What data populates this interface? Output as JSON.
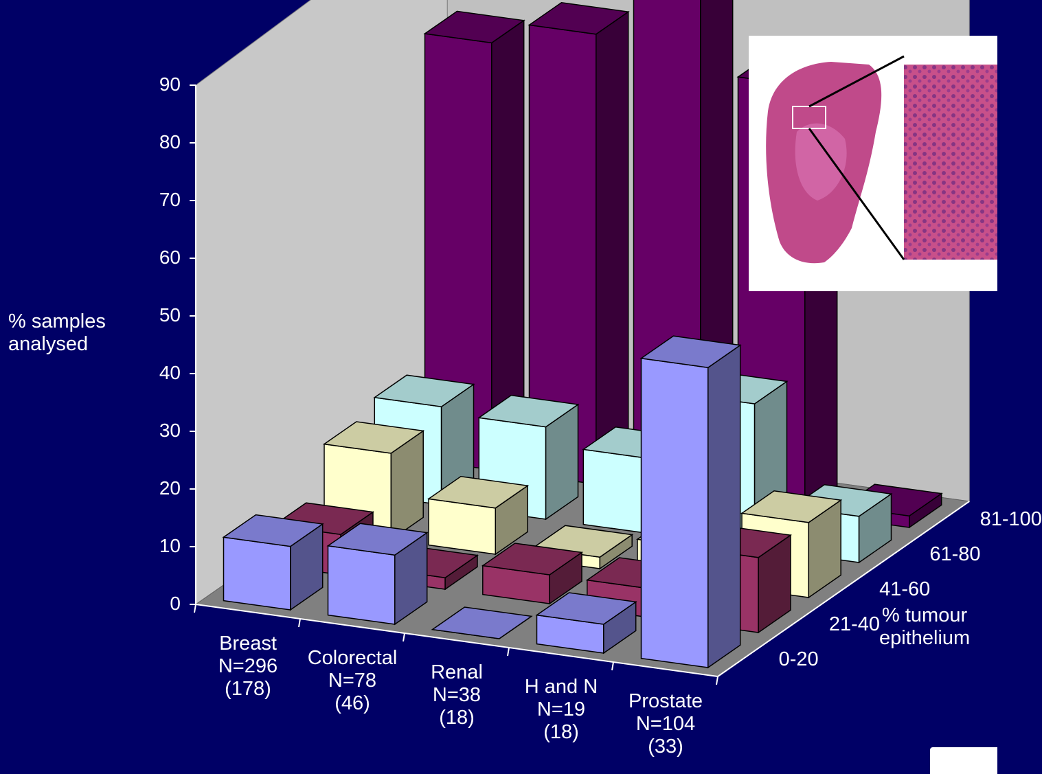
{
  "chart_data": {
    "type": "bar",
    "subtype": "3d-column",
    "ylabel": "% samples\nanalysed",
    "zlabel": "% tumour\nepithelium",
    "ylim": [
      0,
      90
    ],
    "yticks": [
      "0",
      "10",
      "20",
      "30",
      "40",
      "50",
      "60",
      "70",
      "80",
      "90"
    ],
    "categories": [
      "Breast\nN=296\n(178)",
      "Colorectal\nN=78\n(46)",
      "Renal\nN=38\n(18)",
      "H and N\nN=19\n(18)",
      "Prostate\nN=104\n(33)"
    ],
    "series": [
      {
        "name": "0-20",
        "values": [
          11,
          12,
          0,
          5,
          52
        ]
      },
      {
        "name": "21-40",
        "values": [
          7,
          2,
          5,
          5,
          13
        ]
      },
      {
        "name": "41-60",
        "values": [
          15,
          8,
          2,
          6,
          13
        ]
      },
      {
        "name": "61-80",
        "values": [
          17,
          16,
          13,
          25,
          8
        ]
      },
      {
        "name": "81-100",
        "values": [
          74,
          78,
          91,
          74,
          2
        ]
      }
    ],
    "series_colors": [
      "#9999ff",
      "#993366",
      "#ffffcc",
      "#ccffff",
      "#660066"
    ],
    "grid": false,
    "legend": "depth-axis"
  }
}
